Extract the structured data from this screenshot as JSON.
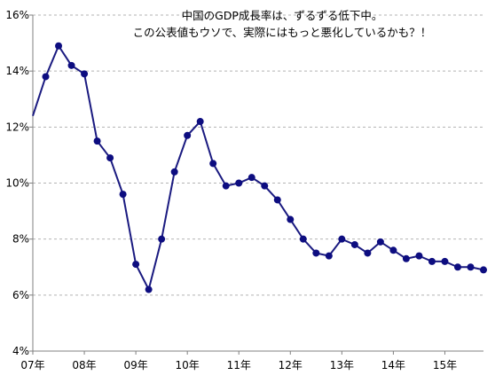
{
  "chart_data": {
    "type": "line",
    "title": [
      "中国のGDP成長率は、ずるずる低下中。",
      "この公表値もウソで、実際にはもっと悪化しているかも？！"
    ],
    "xlabel": "",
    "ylabel": "",
    "ylim": [
      4,
      16
    ],
    "ytick_values": [
      4,
      6,
      8,
      10,
      12,
      14,
      16
    ],
    "ytick_labels": [
      "4%",
      "6%",
      "8%",
      "10%",
      "12%",
      "14%",
      "16%"
    ],
    "xtick_labels": [
      "07年",
      "08年",
      "09年",
      "10年",
      "11年",
      "12年",
      "13年",
      "14年",
      "15年"
    ],
    "grid": true,
    "colors": {
      "line": "#1a1a80",
      "marker": "#0d0d80"
    },
    "series": [
      {
        "values": [
          12.4,
          13.8,
          14.9,
          14.2,
          13.9,
          11.5,
          10.9,
          9.6,
          7.1,
          6.2,
          8.0,
          10.4,
          11.7,
          12.2,
          10.7,
          9.9,
          10.0,
          10.2,
          9.9,
          9.4,
          8.7,
          8.0,
          7.5,
          7.4,
          8.0,
          7.8,
          7.5,
          7.9,
          7.6,
          7.3,
          7.4,
          7.2,
          7.2,
          7.0,
          7.0,
          6.9
        ]
      }
    ]
  }
}
